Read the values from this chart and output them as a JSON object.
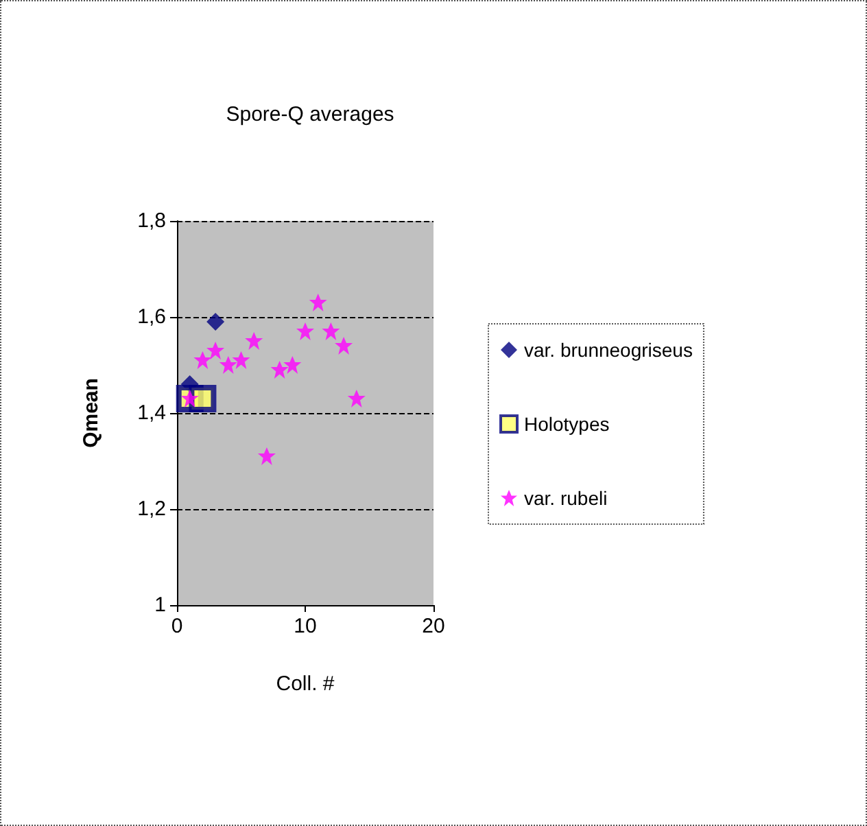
{
  "chart_data": {
    "type": "scatter",
    "title": "Spore-Q averages",
    "xlabel": "Coll. #",
    "ylabel": "Qmean",
    "series": [
      {
        "name": "var. brunneogriseus",
        "color": "#000080",
        "marker": "diamond",
        "x": [
          1,
          3
        ],
        "values": [
          1.46,
          1.59
        ]
      },
      {
        "name": "Holotypes",
        "color": "#000080",
        "marker": "square",
        "x": [
          1,
          2
        ],
        "values": [
          1.43,
          1.43
        ]
      },
      {
        "name": "var. rubeli",
        "color": "#ff00ff",
        "marker": "star",
        "x": [
          1,
          2,
          3,
          4,
          5,
          6,
          7,
          8,
          9,
          10,
          11,
          12,
          13,
          14
        ],
        "values": [
          1.43,
          1.51,
          1.53,
          1.5,
          1.51,
          1.55,
          1.31,
          1.49,
          1.5,
          1.57,
          1.63,
          1.57,
          1.54,
          1.43
        ]
      }
    ],
    "xlim": [
      0,
      20
    ],
    "xticks": [
      0,
      10,
      20
    ],
    "ylim": [
      1,
      1.8
    ],
    "yticks": [
      {
        "value": 1,
        "label": "1"
      },
      {
        "value": 1.2,
        "label": "1,2"
      },
      {
        "value": 1.4,
        "label": "1,4"
      },
      {
        "value": 1.6,
        "label": "1,6"
      },
      {
        "value": 1.8,
        "label": "1,8"
      }
    ],
    "grid": "y",
    "legend": "right"
  }
}
